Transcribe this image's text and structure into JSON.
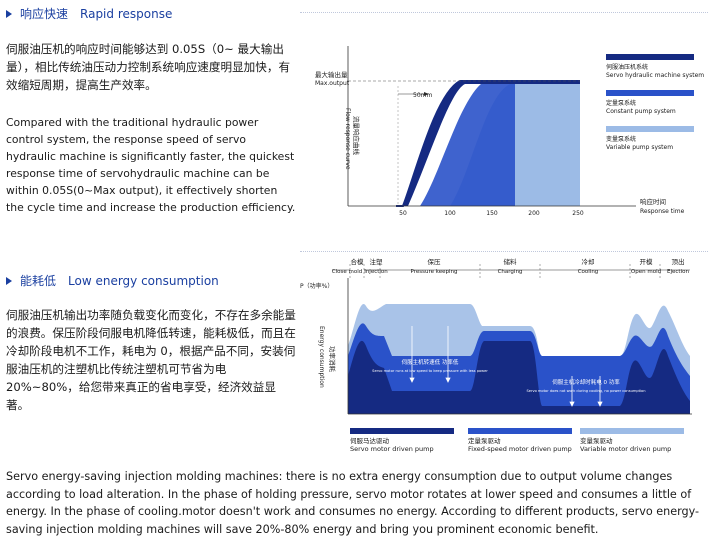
{
  "section1": {
    "title_cn": "响应快速",
    "title_en": "Rapid response",
    "para_cn": "伺服油压机的响应时间能够达到 0.05S（0~ 最大输出量），相比传统油压动力控制系统响应速度明显加快，有效缩短周期，提高生产效率。",
    "para_en": "Compared with the traditional hydraulic power control system, the response speed of servo hydraulic machine is significantly faster, the quickest response time of servohydraulic machine can be within 0.05S(0~Max output), it effectively shorten the cycle time and increase the production efficiency."
  },
  "chart1": {
    "type": "area",
    "ylabel_cn": "最大输出量",
    "ylabel_en": "Max.output",
    "yaxis_cn": "流量响应曲线",
    "yaxis_en": "Flow response curve",
    "xlabel_cn": "响应时间",
    "xlabel_en": "Response time",
    "x_ticks": [
      "50",
      "100",
      "150",
      "200",
      "250"
    ],
    "annotation": "50mm",
    "series": [
      {
        "name_cn": "伺服油压机系统",
        "name_en": "Servo hydraulic machine system",
        "color": "#152a82"
      },
      {
        "name_cn": "定量泵系统",
        "name_en": "Constant pump system",
        "color": "#2a52c9"
      },
      {
        "name_cn": "变量泵系统",
        "name_en": "Variable pump system",
        "color": "#9cbbe6"
      }
    ]
  },
  "section2": {
    "title_cn": "能耗低",
    "title_en": "Low energy consumption",
    "para_cn": "伺服油压机输出功率随负载变化而变化，不存在多余能量的浪费。保压阶段伺服电机降低转速，能耗极低，而且在冷却阶段电机不工作，耗电为 0，根据产品不同，安装伺服油压机的注塑机比传统注塑机可节省为电 20%~80%，给您带来真正的省电享受，经济效益显著。"
  },
  "chart2": {
    "type": "area",
    "phases": [
      {
        "cn": "合模",
        "en": "Close mold"
      },
      {
        "cn": "注塑",
        "en": "Injection"
      },
      {
        "cn": "保压",
        "en": "Pressure keeping"
      },
      {
        "cn": "储料",
        "en": "Charging"
      },
      {
        "cn": "冷却",
        "en": "Cooling"
      },
      {
        "cn": "开模",
        "en": "Open mold"
      },
      {
        "cn": "顶出",
        "en": "Ejection"
      }
    ],
    "ylabel": "P（功率%）",
    "yaxis_cn": "功率消耗",
    "yaxis_en": "Energy consumption",
    "note1_cn": "伺服主机转速低 功率低",
    "note1_en": "Servo motor runs at low speed to keep pressure with less power",
    "note2_cn": "伺服主机冷却时耗电 0 功率",
    "note2_en": "Servo motor does not work during cooling, no power consumption",
    "legend": [
      {
        "cn": "伺服马达驱动",
        "en": "Servo motor driven pump",
        "color": "#152a82"
      },
      {
        "cn": "定量泵驱动",
        "en": "Fixed-speed motor driven pump",
        "color": "#2a52c9"
      },
      {
        "cn": "变量泵驱动",
        "en": "Variable motor driven pump",
        "color": "#9cbbe6"
      }
    ]
  },
  "bottom": {
    "para_en": "Servo energy-saving injection molding machines: there is no extra energy consumption due to output volume changes according to load alteration. In the phase of holding pressure, servo motor rotates at lower speed and consumes a little of energy. In the phase of cooling.motor doesn't work and consumes no energy. According to different products, servo energy-saving injection molding machines will save 20%-80% energy and bring you prominent economic benefit."
  }
}
